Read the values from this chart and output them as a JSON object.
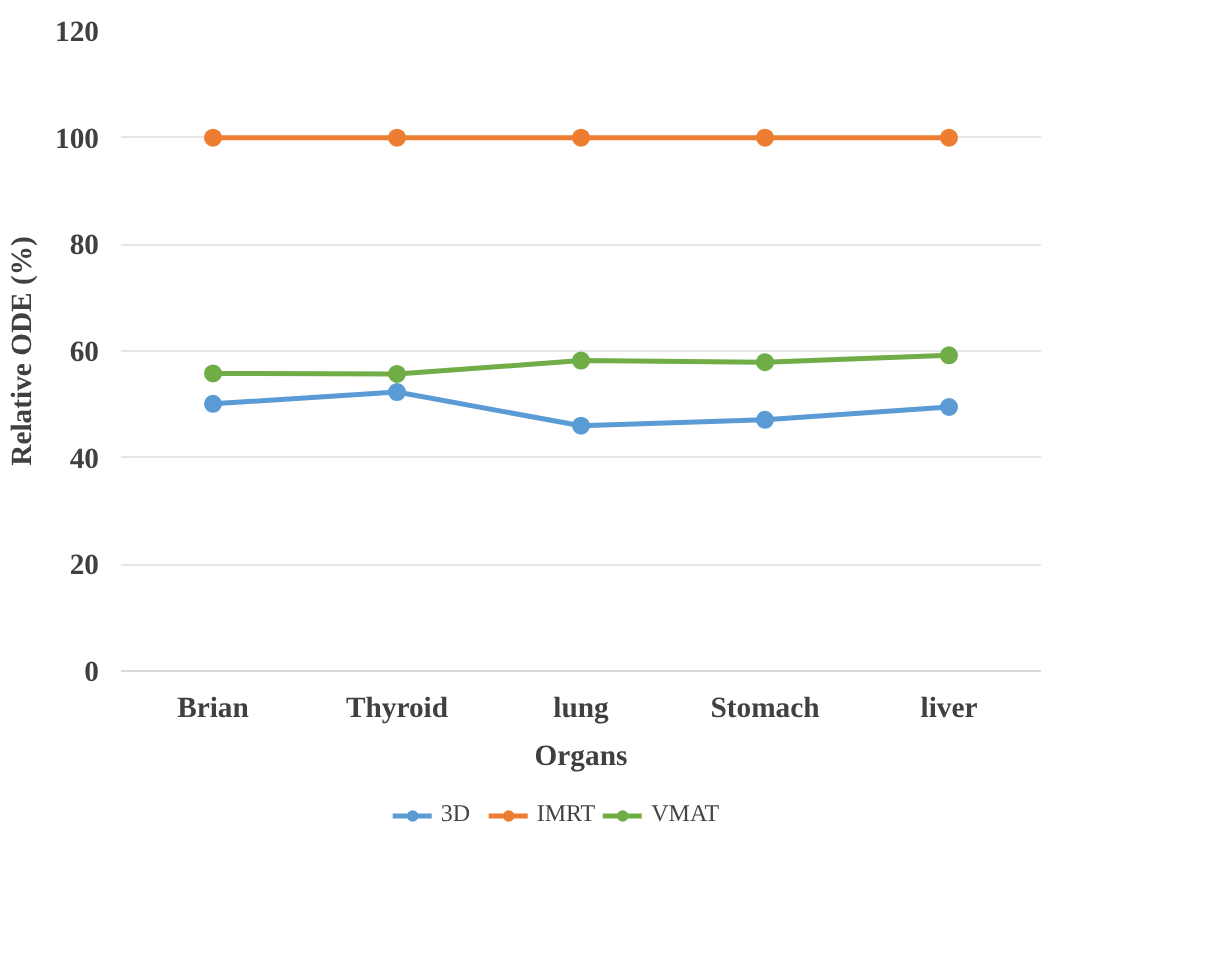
{
  "chart_data": {
    "type": "line",
    "xlabel": "Organs",
    "ylabel": "Relative ODE (%)",
    "categories": [
      "Brian",
      "Thyroid",
      "lung",
      "Stomach",
      "liver"
    ],
    "series": [
      {
        "name": "3D",
        "color": "#5b9bd5",
        "values": [
          50.1,
          52.3,
          46.0,
          47.1,
          49.5
        ]
      },
      {
        "name": "IMRT",
        "color": "#ed7d31",
        "values": [
          100,
          100,
          100,
          100,
          100
        ]
      },
      {
        "name": "VMAT",
        "color": "#70ad47",
        "values": [
          55.8,
          55.7,
          58.2,
          57.9,
          59.2
        ]
      }
    ],
    "ylim": [
      0,
      120
    ],
    "yticks": [
      0,
      20,
      40,
      60,
      80,
      100,
      120
    ],
    "grid": "y",
    "legend": "bottom",
    "marker": "circle",
    "line_style": "solid"
  }
}
